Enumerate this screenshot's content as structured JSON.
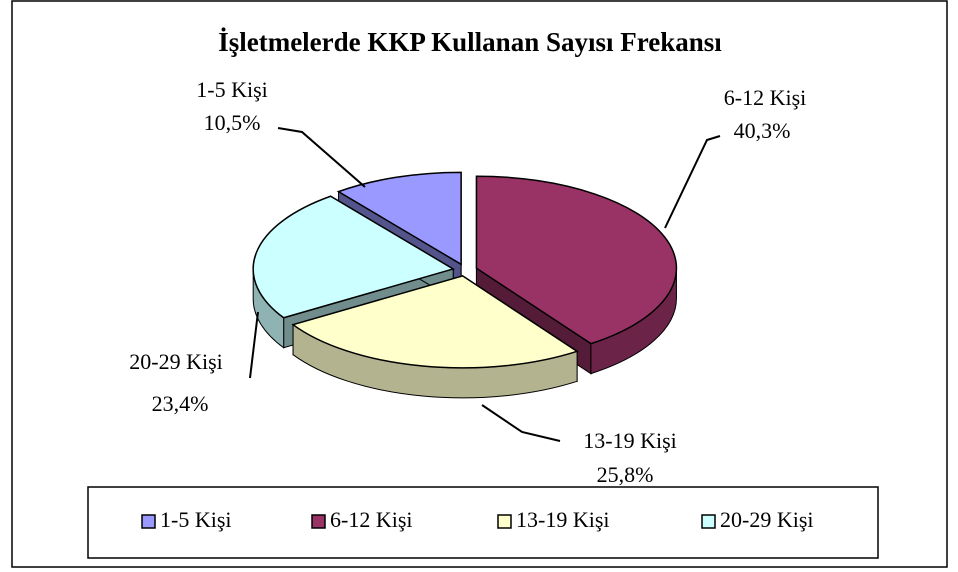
{
  "chart_data": {
    "type": "pie3d",
    "title": "İşletmelerde KKP Kullanan Sayısı Frekansı",
    "categories": [
      "1-5 Kişi",
      "6-12 Kişi",
      "13-19 Kişi",
      "20-29 Kişi"
    ],
    "values": [
      10.5,
      40.3,
      25.8,
      23.4
    ],
    "value_labels": [
      "10,5%",
      "40,3%",
      "25,8%",
      "23,4%"
    ],
    "colors": [
      "#9999ff",
      "#993366",
      "#ffffcc",
      "#ccffff"
    ],
    "legend": "bottom"
  }
}
